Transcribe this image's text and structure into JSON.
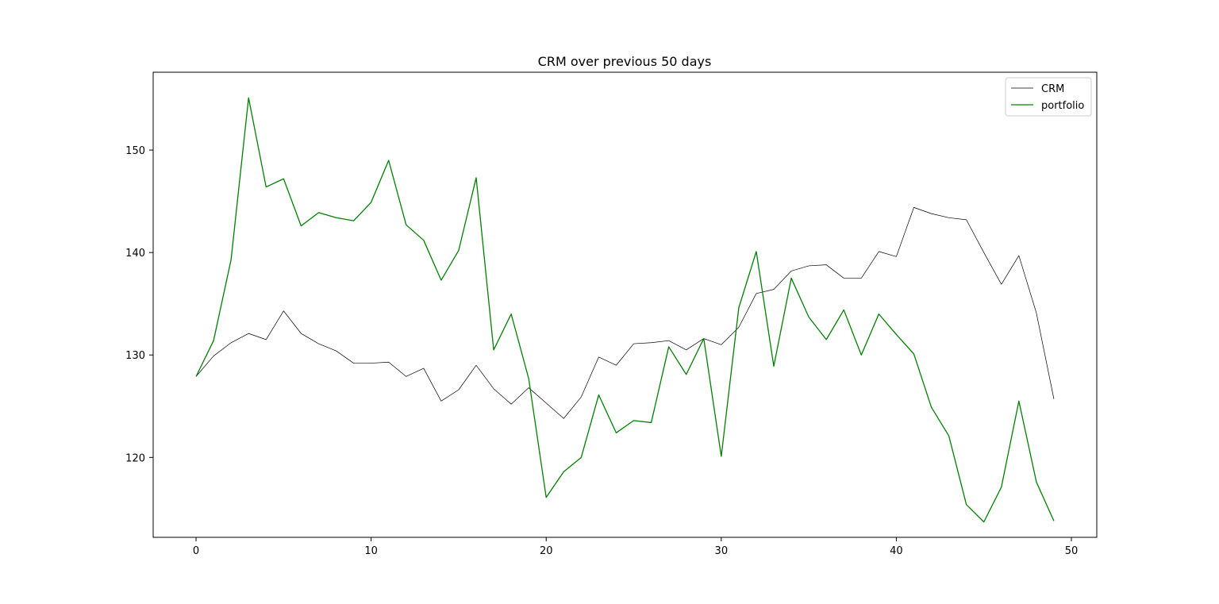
{
  "chart_data": {
    "type": "line",
    "title": "CRM over previous 50 days",
    "xlabel": "",
    "ylabel": "",
    "xlim": [
      -2.45,
      51.45
    ],
    "ylim": [
      112.2,
      157.6
    ],
    "xticks": [
      0,
      10,
      20,
      30,
      40,
      50
    ],
    "yticks": [
      120,
      130,
      140,
      150
    ],
    "grid": false,
    "legend": "top-right",
    "x": [
      0,
      1,
      2,
      3,
      4,
      5,
      6,
      7,
      8,
      9,
      10,
      11,
      12,
      13,
      14,
      15,
      16,
      17,
      18,
      19,
      20,
      21,
      22,
      23,
      24,
      25,
      26,
      27,
      28,
      29,
      30,
      31,
      32,
      33,
      34,
      35,
      36,
      37,
      38,
      39,
      40,
      41,
      42,
      43,
      44,
      45,
      46,
      47,
      48,
      49
    ],
    "series": [
      {
        "name": "CRM",
        "color": "#000000",
        "values": [
          127.9,
          129.9,
          131.2,
          132.1,
          131.5,
          134.3,
          132.1,
          131.1,
          130.4,
          129.2,
          129.2,
          129.3,
          127.9,
          128.7,
          125.5,
          126.6,
          129.0,
          126.7,
          125.2,
          126.8,
          125.3,
          123.8,
          125.9,
          129.8,
          129.0,
          131.1,
          131.2,
          131.4,
          130.5,
          131.6,
          131.0,
          132.7,
          136.0,
          136.4,
          138.2,
          138.7,
          138.8,
          137.5,
          137.5,
          140.1,
          139.6,
          144.4,
          143.8,
          143.4,
          143.2,
          140.0,
          136.9,
          139.7,
          134.1,
          125.7
        ]
      },
      {
        "name": "portfolio",
        "color": "#008000",
        "values": [
          127.9,
          131.4,
          139.3,
          155.1,
          146.4,
          147.2,
          142.6,
          143.9,
          143.4,
          143.1,
          144.9,
          149.0,
          142.7,
          141.2,
          137.3,
          140.2,
          147.3,
          130.5,
          134.0,
          127.7,
          116.1,
          118.6,
          120.0,
          126.1,
          122.4,
          123.6,
          123.4,
          130.8,
          128.1,
          131.6,
          120.1,
          134.6,
          140.1,
          128.9,
          137.5,
          133.7,
          131.5,
          134.4,
          130.0,
          134.0,
          132.0,
          130.1,
          124.9,
          122.1,
          115.4,
          113.7,
          117.1,
          125.5,
          117.6,
          113.8
        ]
      }
    ]
  }
}
